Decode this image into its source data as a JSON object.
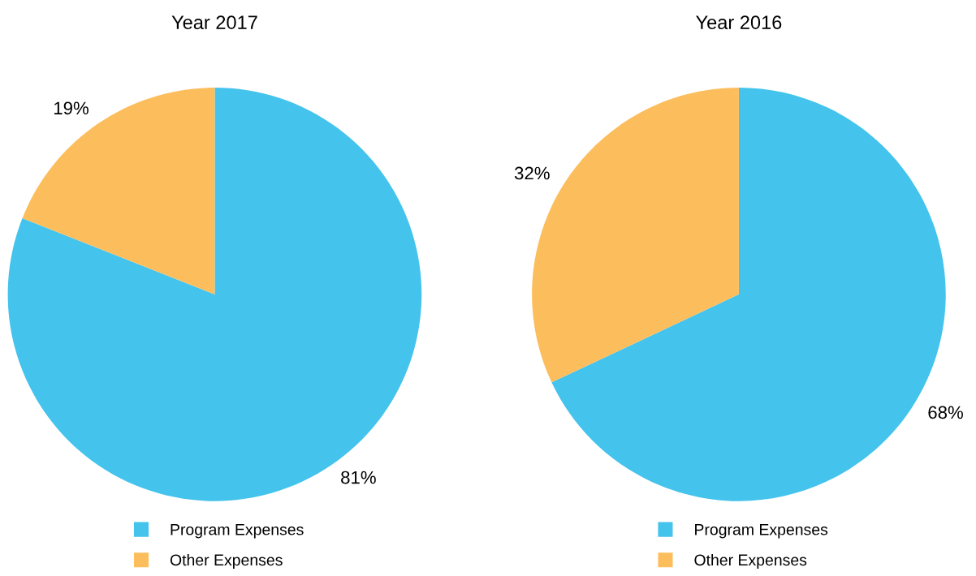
{
  "chart_data": [
    {
      "type": "pie",
      "title": "Year 2017",
      "categories": [
        "Program Expenses",
        "Other Expenses"
      ],
      "values": [
        81,
        19
      ],
      "colors": [
        "#44c3ed",
        "#fcbe5c"
      ],
      "value_labels": [
        "81%",
        "19%"
      ],
      "legend": "bottom"
    },
    {
      "type": "pie",
      "title": "Year 2016",
      "categories": [
        "Program Expenses",
        "Other Expenses"
      ],
      "values": [
        68,
        32
      ],
      "colors": [
        "#44c3ed",
        "#fcbe5c"
      ],
      "value_labels": [
        "68%",
        "32%"
      ],
      "legend": "bottom"
    }
  ]
}
